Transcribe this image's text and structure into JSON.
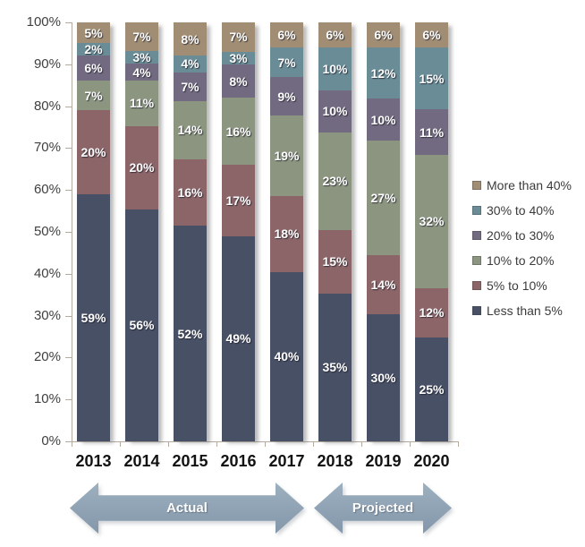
{
  "chart_data": {
    "type": "bar",
    "variant": "stacked-100",
    "title": "",
    "categories": [
      "2013",
      "2014",
      "2015",
      "2016",
      "2017",
      "2018",
      "2019",
      "2020"
    ],
    "series": [
      {
        "name": "Less than 5%",
        "color": "#485066",
        "values": [
          59,
          56,
          52,
          49,
          40,
          35,
          30,
          25
        ]
      },
      {
        "name": "5% to 10%",
        "color": "#8c6569",
        "values": [
          20,
          20,
          16,
          17,
          18,
          15,
          14,
          12
        ]
      },
      {
        "name": "10% to 20%",
        "color": "#8b9580",
        "values": [
          7,
          11,
          14,
          16,
          19,
          23,
          27,
          32
        ]
      },
      {
        "name": "20% to 30%",
        "color": "#726a80",
        "values": [
          6,
          4,
          7,
          8,
          9,
          10,
          10,
          11
        ]
      },
      {
        "name": "30% to 40%",
        "color": "#698c97",
        "values": [
          2,
          3,
          4,
          3,
          7,
          10,
          12,
          15
        ]
      },
      {
        "name": "More than 40%",
        "color": "#a08d74",
        "values": [
          5,
          7,
          8,
          7,
          6,
          6,
          6,
          6
        ]
      }
    ],
    "value_suffix": "%",
    "y_axis": {
      "min": 0,
      "max": 100,
      "tick_labels": [
        "100%",
        "90%",
        "80%",
        "70%",
        "60%",
        "50%",
        "40%",
        "30%",
        "20%",
        "10%",
        "0%"
      ]
    },
    "legend": {
      "position": "right",
      "order": [
        "More than 40%",
        "30% to 40%",
        "20% to 30%",
        "10% to 20%",
        "5% to 10%",
        "Less than 5%"
      ]
    },
    "gridlines": false
  },
  "annotations": {
    "actual_label": "Actual",
    "projected_label": "Projected"
  },
  "colors": {
    "arrow_fill": "#8fa2b4",
    "axis_line": "#b3aaa0",
    "axis_text": "#3f3f3f",
    "segment_label_text": "#ffffff",
    "background": "#ffffff"
  }
}
